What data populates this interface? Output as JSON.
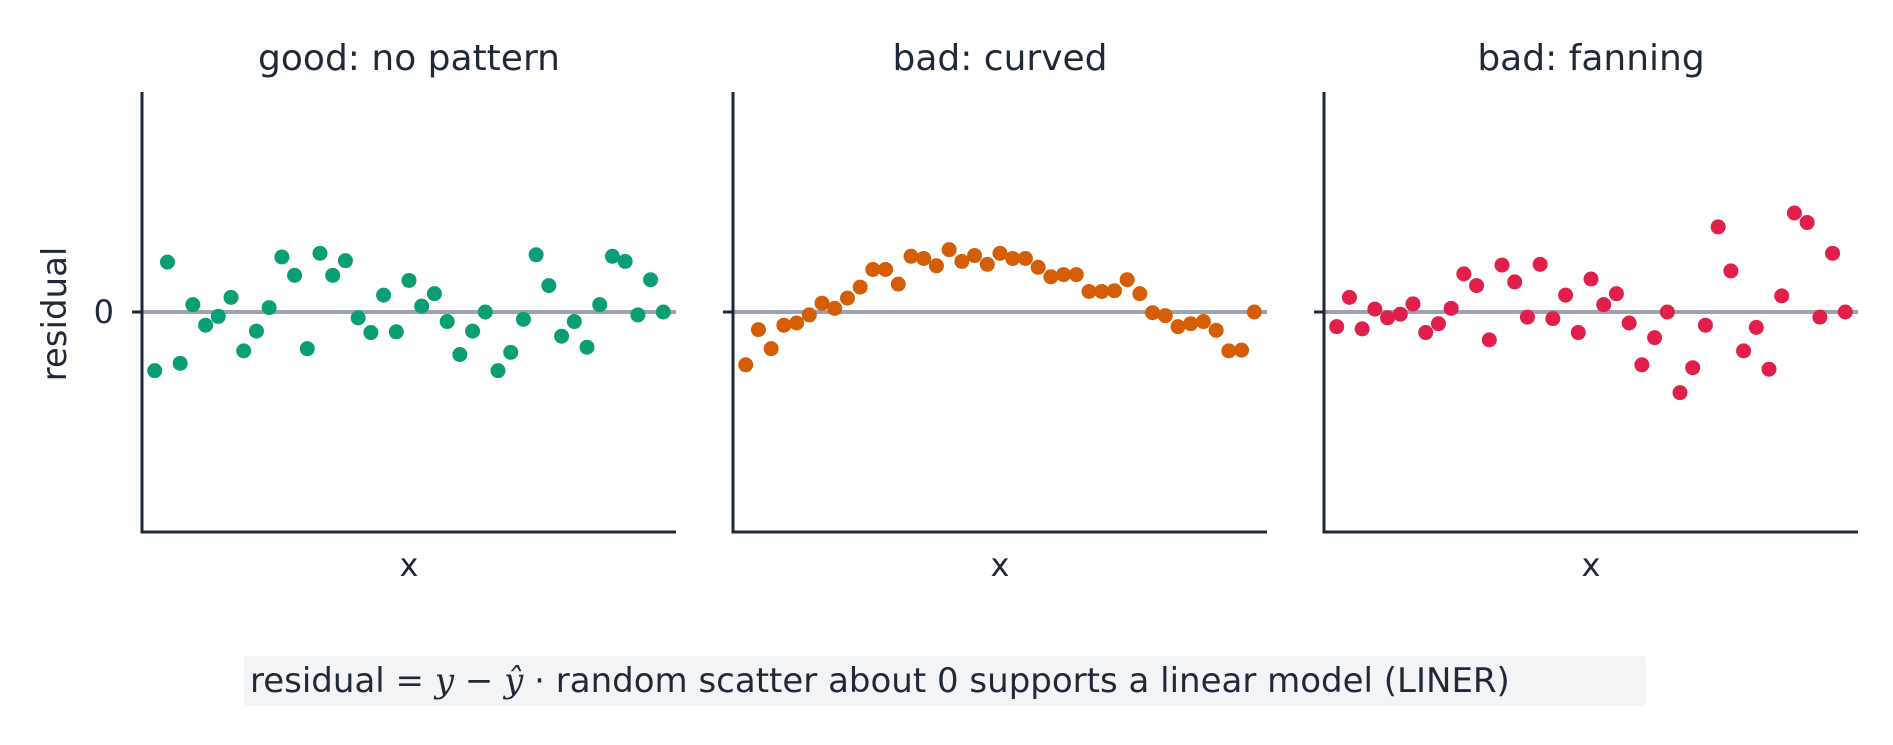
{
  "chart_data": [
    {
      "type": "scatter",
      "title": "good: no pattern",
      "xlabel": "x",
      "ylabel": "residual",
      "yticks": [
        "0"
      ],
      "xlim": [
        0,
        42
      ],
      "ylim": [
        -3,
        3
      ],
      "reference_line": 0,
      "color": "#0a9e74",
      "series": [
        {
          "x": [
            1,
            2,
            3,
            4,
            5,
            6,
            7,
            8,
            9,
            10,
            11,
            12,
            13,
            14,
            15,
            16,
            17,
            18,
            19,
            20,
            21,
            22,
            23,
            24,
            25,
            26,
            27,
            28,
            29,
            30,
            31,
            32,
            33,
            34,
            35,
            36,
            37,
            38,
            39,
            40,
            41
          ],
          "values": [
            -0.8,
            0.68,
            -0.7,
            0.1,
            -0.18,
            -0.06,
            0.2,
            -0.53,
            -0.26,
            0.06,
            0.75,
            0.5,
            -0.5,
            0.8,
            0.5,
            0.7,
            -0.08,
            -0.28,
            0.23,
            -0.27,
            0.43,
            0.08,
            0.25,
            -0.13,
            -0.58,
            -0.26,
            0.0,
            -0.8,
            -0.55,
            -0.1,
            0.78,
            0.36,
            -0.33,
            -0.13,
            -0.48,
            0.1,
            0.76,
            0.69,
            -0.04,
            0.44,
            0.0
          ]
        }
      ]
    },
    {
      "type": "scatter",
      "title": "bad: curved",
      "xlabel": "x",
      "ylabel": "",
      "yticks": [
        ""
      ],
      "xlim": [
        0,
        42
      ],
      "ylim": [
        -3,
        3
      ],
      "reference_line": 0,
      "color": "#d45d06",
      "series": [
        {
          "x": [
            1,
            2,
            3,
            4,
            5,
            6,
            7,
            8,
            9,
            10,
            11,
            12,
            13,
            14,
            15,
            16,
            17,
            18,
            19,
            20,
            21,
            22,
            23,
            24,
            25,
            26,
            27,
            28,
            29,
            30,
            31,
            32,
            33,
            34,
            35,
            36,
            37,
            38,
            39,
            40,
            41
          ],
          "values": [
            -0.72,
            -0.24,
            -0.5,
            -0.18,
            -0.15,
            -0.04,
            0.12,
            0.05,
            0.19,
            0.34,
            0.58,
            0.58,
            0.38,
            0.76,
            0.73,
            0.63,
            0.85,
            0.69,
            0.77,
            0.65,
            0.8,
            0.73,
            0.73,
            0.61,
            0.48,
            0.51,
            0.51,
            0.28,
            0.28,
            0.29,
            0.44,
            0.25,
            -0.01,
            -0.05,
            -0.2,
            -0.16,
            -0.13,
            -0.25,
            -0.53,
            -0.52,
            0.0
          ]
        }
      ]
    },
    {
      "type": "scatter",
      "title": "bad: fanning",
      "xlabel": "x",
      "ylabel": "",
      "yticks": [
        ""
      ],
      "xlim": [
        0,
        42
      ],
      "ylim": [
        -3,
        3
      ],
      "reference_line": 0,
      "color": "#e0204a",
      "series": [
        {
          "x": [
            1,
            2,
            3,
            4,
            5,
            6,
            7,
            8,
            9,
            10,
            11,
            12,
            13,
            14,
            15,
            16,
            17,
            18,
            19,
            20,
            21,
            22,
            23,
            24,
            25,
            26,
            27,
            28,
            29,
            30,
            31,
            32,
            33,
            34,
            35,
            36,
            37,
            38,
            39,
            40,
            41
          ],
          "values": [
            -0.2,
            0.2,
            -0.23,
            0.04,
            -0.08,
            -0.03,
            0.11,
            -0.28,
            -0.16,
            0.05,
            0.52,
            0.36,
            -0.38,
            0.64,
            0.41,
            -0.07,
            0.65,
            -0.09,
            0.23,
            -0.28,
            0.45,
            0.1,
            0.25,
            -0.15,
            -0.72,
            -0.35,
            0.0,
            -1.1,
            -0.76,
            -0.18,
            1.16,
            0.56,
            -0.53,
            -0.21,
            -0.78,
            0.22,
            1.35,
            1.22,
            -0.07,
            0.8,
            0.0
          ]
        }
      ]
    }
  ],
  "caption": {
    "prefix": "residual ",
    "formula": "= y − ŷ",
    "separator": " · ",
    "text": "random scatter about 0 supports a linear model (LINER)"
  }
}
